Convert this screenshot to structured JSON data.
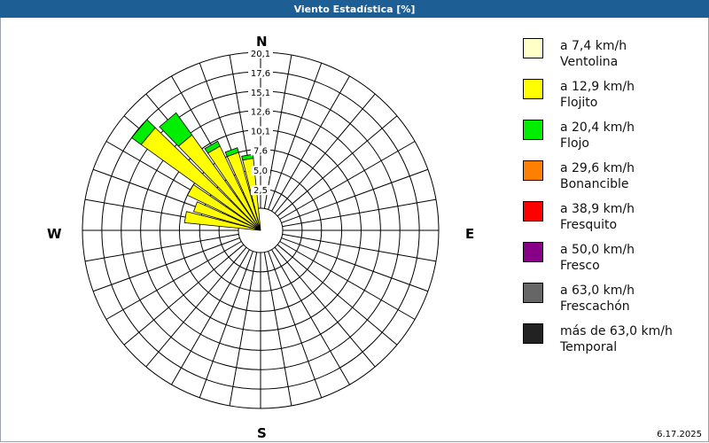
{
  "window": {
    "title": "Viento Estadística [%]"
  },
  "chart_data": {
    "type": "wind-rose",
    "title": "Viento Estadística [%]",
    "radial_unit": "%",
    "radial_max": 20.1,
    "radial_ticks": [
      "2,5",
      "5,0",
      "7,6",
      "10,1",
      "12,6",
      "15,1",
      "17,6",
      "20,1"
    ],
    "radial_tick_values": [
      2.5,
      5.0,
      7.6,
      10.1,
      12.6,
      15.1,
      17.6,
      20.1
    ],
    "direction_labels": {
      "north": "N",
      "east": "E",
      "south": "S",
      "west": "W"
    },
    "direction_sectors": 36,
    "directions_deg": [
      280,
      290,
      300,
      310,
      320,
      330,
      340,
      350
    ],
    "series": [
      {
        "name": "a 7,4 km/h Ventolina",
        "color": "#ffffc8",
        "values": [
          0,
          0,
          0,
          0,
          0,
          0,
          0,
          0
        ]
      },
      {
        "name": "a 12,9 km/h Flojito",
        "color": "#ffff00",
        "values": [
          7.0,
          6.1,
          7.6,
          16.1,
          12.3,
          9.2,
          7.6,
          6.5
        ]
      },
      {
        "name": "a 20,4 km/h Flojo",
        "color": "#00ee00",
        "values": [
          0,
          0,
          0,
          1.5,
          3.5,
          0.7,
          0.6,
          0.5
        ]
      },
      {
        "name": "a 29,6 km/h Bonancible",
        "color": "#ff8000",
        "values": [
          0,
          0,
          0,
          0,
          0,
          0,
          0,
          0
        ]
      },
      {
        "name": "a 38,9 km/h Fresquito",
        "color": "#ff0000",
        "values": [
          0,
          0,
          0,
          0,
          0,
          0,
          0,
          0
        ]
      },
      {
        "name": "a 50,0 km/h Fresco",
        "color": "#880088",
        "values": [
          0,
          0,
          0,
          0,
          0,
          0,
          0,
          0
        ]
      },
      {
        "name": "a 63,0 km/h Frescachón",
        "color": "#666666",
        "values": [
          0,
          0,
          0,
          0,
          0,
          0,
          0,
          0
        ]
      },
      {
        "name": "más de 63,0 km/h Temporal",
        "color": "#222222",
        "values": [
          0,
          0,
          0,
          0,
          0,
          0,
          0,
          0
        ]
      }
    ],
    "legend_position": "right",
    "grid": true
  },
  "legend": [
    {
      "line1": "a 7,4 km/h",
      "line2": "Ventolina",
      "color": "#ffffc8"
    },
    {
      "line1": "a 12,9 km/h",
      "line2": "Flojito",
      "color": "#ffff00"
    },
    {
      "line1": "a 20,4 km/h",
      "line2": "Flojo",
      "color": "#00ee00"
    },
    {
      "line1": "a 29,6 km/h",
      "line2": "Bonancible",
      "color": "#ff8000"
    },
    {
      "line1": "a 38,9 km/h",
      "line2": "Fresquito",
      "color": "#ff0000"
    },
    {
      "line1": "a 50,0 km/h",
      "line2": "Fresco",
      "color": "#880088"
    },
    {
      "line1": "a 63,0 km/h",
      "line2": "Frescachón",
      "color": "#666666"
    },
    {
      "line1": "más de 63,0 km/h",
      "line2": "Temporal",
      "color": "#222222"
    }
  ],
  "footer": {
    "date": "6.17.2025"
  }
}
